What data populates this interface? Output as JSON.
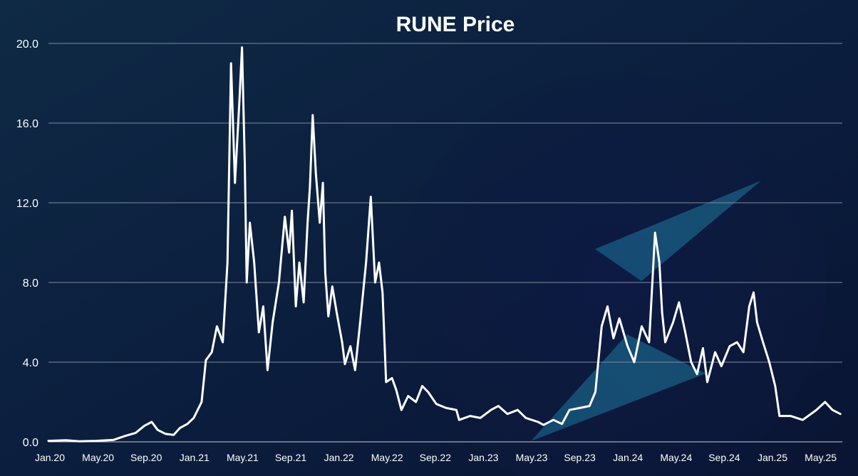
{
  "chart_data": {
    "type": "line",
    "title": "RUNE Price",
    "xlabel": "",
    "ylabel": "",
    "ylim": [
      0,
      20
    ],
    "y_ticks": [
      "0.0",
      "4.0",
      "8.0",
      "12.0",
      "16.0",
      "20.0"
    ],
    "x_ticks": [
      "Jan.20",
      "May.20",
      "Sep.20",
      "Jan.21",
      "May.21",
      "Sep.21",
      "Jan.22",
      "May.22",
      "Sep.22",
      "Jan.23",
      "May.23",
      "Sep.23",
      "Jan.24",
      "May.24",
      "Sep.24",
      "Jan.25",
      "May.25"
    ],
    "x_range": [
      "2020-01-01",
      "2025-07-15"
    ],
    "grid": true,
    "legend": "none",
    "series": [
      {
        "color": "#ffffff",
        "points": [
          [
            "2020-01-01",
            0.05
          ],
          [
            "2020-02-15",
            0.08
          ],
          [
            "2020-03-20",
            0.03
          ],
          [
            "2020-05-01",
            0.05
          ],
          [
            "2020-06-15",
            0.1
          ],
          [
            "2020-07-15",
            0.3
          ],
          [
            "2020-08-10",
            0.45
          ],
          [
            "2020-09-01",
            0.8
          ],
          [
            "2020-09-20",
            1.0
          ],
          [
            "2020-10-05",
            0.6
          ],
          [
            "2020-10-25",
            0.4
          ],
          [
            "2020-11-15",
            0.35
          ],
          [
            "2020-12-01",
            0.7
          ],
          [
            "2020-12-20",
            0.9
          ],
          [
            "2021-01-05",
            1.2
          ],
          [
            "2021-01-25",
            2.0
          ],
          [
            "2021-02-05",
            4.1
          ],
          [
            "2021-02-20",
            4.5
          ],
          [
            "2021-03-05",
            5.8
          ],
          [
            "2021-03-20",
            5.0
          ],
          [
            "2021-04-01",
            9.0
          ],
          [
            "2021-04-10",
            19.0
          ],
          [
            "2021-04-20",
            13.0
          ],
          [
            "2021-05-01",
            17.0
          ],
          [
            "2021-05-08",
            19.8
          ],
          [
            "2021-05-15",
            14.0
          ],
          [
            "2021-05-20",
            8.0
          ],
          [
            "2021-05-28",
            11.0
          ],
          [
            "2021-06-08",
            9.0
          ],
          [
            "2021-06-20",
            5.5
          ],
          [
            "2021-07-01",
            6.8
          ],
          [
            "2021-07-12",
            3.6
          ],
          [
            "2021-07-25",
            6.0
          ],
          [
            "2021-08-10",
            8.0
          ],
          [
            "2021-08-25",
            11.3
          ],
          [
            "2021-09-05",
            9.5
          ],
          [
            "2021-09-12",
            11.6
          ],
          [
            "2021-09-22",
            6.8
          ],
          [
            "2021-10-01",
            9.0
          ],
          [
            "2021-10-12",
            7.0
          ],
          [
            "2021-10-22",
            11.0
          ],
          [
            "2021-10-28",
            12.8
          ],
          [
            "2021-11-04",
            16.4
          ],
          [
            "2021-11-12",
            13.5
          ],
          [
            "2021-11-22",
            11.0
          ],
          [
            "2021-11-30",
            13.0
          ],
          [
            "2021-12-06",
            8.5
          ],
          [
            "2021-12-14",
            6.3
          ],
          [
            "2021-12-24",
            7.8
          ],
          [
            "2022-01-05",
            6.4
          ],
          [
            "2022-01-18",
            5.0
          ],
          [
            "2022-01-25",
            3.9
          ],
          [
            "2022-02-08",
            4.8
          ],
          [
            "2022-02-20",
            3.6
          ],
          [
            "2022-03-05",
            6.0
          ],
          [
            "2022-03-20",
            9.0
          ],
          [
            "2022-04-01",
            12.3
          ],
          [
            "2022-04-12",
            8.0
          ],
          [
            "2022-04-22",
            9.0
          ],
          [
            "2022-05-01",
            7.5
          ],
          [
            "2022-05-10",
            3.0
          ],
          [
            "2022-05-25",
            3.2
          ],
          [
            "2022-06-05",
            2.6
          ],
          [
            "2022-06-18",
            1.6
          ],
          [
            "2022-07-05",
            2.3
          ],
          [
            "2022-07-25",
            2.0
          ],
          [
            "2022-08-10",
            2.8
          ],
          [
            "2022-08-25",
            2.5
          ],
          [
            "2022-09-15",
            1.9
          ],
          [
            "2022-10-10",
            1.7
          ],
          [
            "2022-11-05",
            1.6
          ],
          [
            "2022-11-12",
            1.1
          ],
          [
            "2022-12-10",
            1.3
          ],
          [
            "2023-01-05",
            1.2
          ],
          [
            "2023-02-01",
            1.6
          ],
          [
            "2023-02-20",
            1.8
          ],
          [
            "2023-03-15",
            1.4
          ],
          [
            "2023-04-10",
            1.6
          ],
          [
            "2023-05-01",
            1.2
          ],
          [
            "2023-06-01",
            1.0
          ],
          [
            "2023-06-15",
            0.85
          ],
          [
            "2023-07-10",
            1.1
          ],
          [
            "2023-08-01",
            0.9
          ],
          [
            "2023-08-20",
            1.6
          ],
          [
            "2023-09-15",
            1.7
          ],
          [
            "2023-10-10",
            1.8
          ],
          [
            "2023-10-25",
            2.5
          ],
          [
            "2023-11-10",
            5.8
          ],
          [
            "2023-11-25",
            6.8
          ],
          [
            "2023-12-10",
            5.2
          ],
          [
            "2023-12-25",
            6.2
          ],
          [
            "2024-01-15",
            4.8
          ],
          [
            "2024-02-01",
            4.0
          ],
          [
            "2024-02-20",
            5.8
          ],
          [
            "2024-03-10",
            5.0
          ],
          [
            "2024-03-25",
            10.5
          ],
          [
            "2024-04-05",
            9.0
          ],
          [
            "2024-04-12",
            6.5
          ],
          [
            "2024-04-20",
            5.0
          ],
          [
            "2024-05-10",
            6.0
          ],
          [
            "2024-05-25",
            7.0
          ],
          [
            "2024-06-10",
            5.5
          ],
          [
            "2024-06-25",
            4.0
          ],
          [
            "2024-07-10",
            3.4
          ],
          [
            "2024-07-25",
            4.7
          ],
          [
            "2024-08-05",
            3.0
          ],
          [
            "2024-08-25",
            4.5
          ],
          [
            "2024-09-10",
            3.8
          ],
          [
            "2024-10-01",
            4.8
          ],
          [
            "2024-10-20",
            5.0
          ],
          [
            "2024-11-05",
            4.5
          ],
          [
            "2024-11-20",
            6.8
          ],
          [
            "2024-12-01",
            7.5
          ],
          [
            "2024-12-10",
            6.0
          ],
          [
            "2024-12-25",
            5.0
          ],
          [
            "2025-01-10",
            4.0
          ],
          [
            "2025-01-25",
            2.8
          ],
          [
            "2025-02-05",
            1.3
          ],
          [
            "2025-03-05",
            1.3
          ],
          [
            "2025-04-05",
            1.1
          ],
          [
            "2025-05-10",
            1.6
          ],
          [
            "2025-06-01",
            2.0
          ],
          [
            "2025-06-20",
            1.6
          ],
          [
            "2025-07-10",
            1.4
          ]
        ]
      }
    ]
  }
}
